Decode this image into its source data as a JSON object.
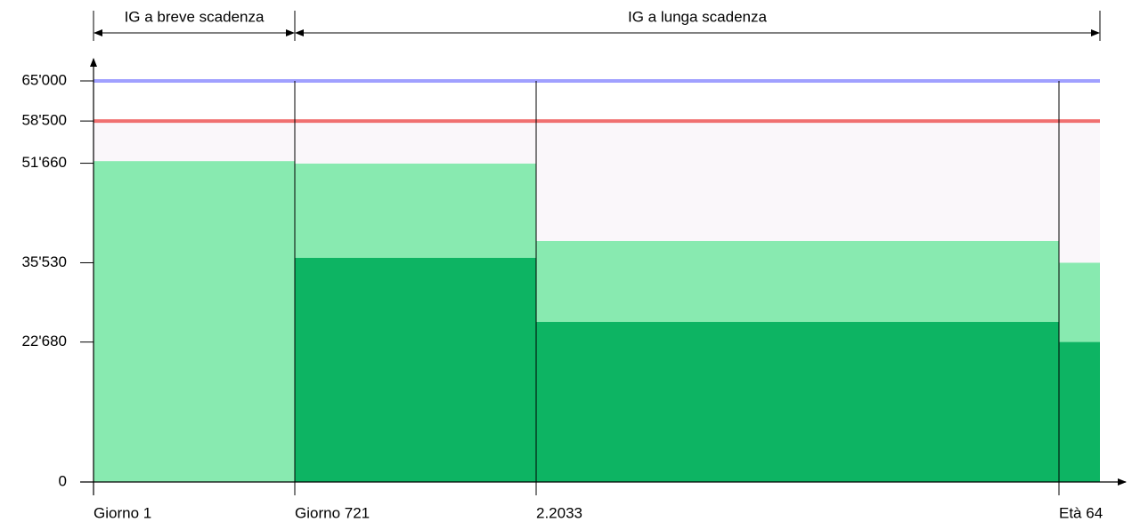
{
  "chart_data": {
    "type": "step",
    "categories": [
      "Giorno 1",
      "Giorno 721",
      "2.2033",
      "Età 64"
    ],
    "series": [
      {
        "color": "#88eab0",
        "values": [
          52000,
          51600,
          39060,
          35530
        ]
      },
      {
        "color": "#0db463",
        "values": [
          0,
          36320,
          25940,
          22680
        ]
      }
    ],
    "ylim": [
      0,
      65000
    ],
    "yticks": [
      0,
      {
        "value": 22680,
        "label": "22'680"
      },
      {
        "value": 35530,
        "label": "35'530"
      },
      {
        "value": 51660,
        "label": "51'660"
      },
      {
        "value": 58500,
        "label": "58'500"
      },
      {
        "value": 65000,
        "label": "65'000"
      }
    ],
    "reference_lines": [
      {
        "value": 65000,
        "color": "#a0a0ff"
      },
      {
        "value": 58500,
        "color": "#f07070"
      }
    ],
    "background_color": "#faf7fa",
    "spans": [
      {
        "label": "IG a breve scadenza",
        "from": 0,
        "to": 1
      },
      {
        "label": "IG a lunga scadenza",
        "from": 1,
        "to": 4
      }
    ]
  }
}
